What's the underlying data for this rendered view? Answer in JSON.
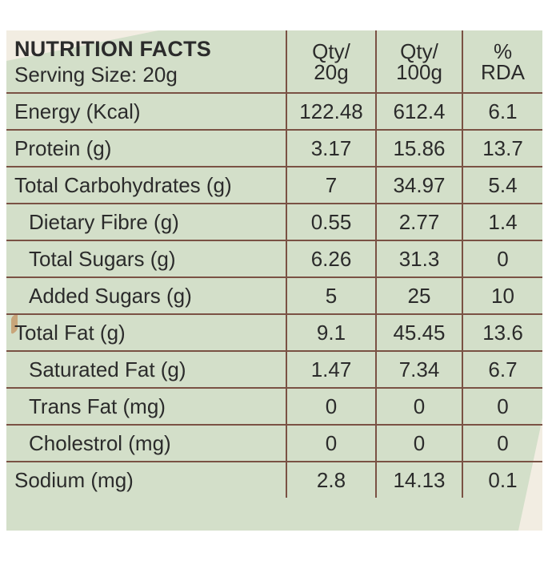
{
  "header": {
    "title": "NUTRITION FACTS",
    "serving": "Serving Size: 20g",
    "columns": [
      {
        "line1": "Qty/",
        "line2": "20g"
      },
      {
        "line1": "Qty/",
        "line2": "100g"
      },
      {
        "line1": "%",
        "line2": "RDA"
      }
    ]
  },
  "rows": [
    {
      "label": "Energy (Kcal)",
      "q20": "122.48",
      "q100": "612.4",
      "rda": "6.1"
    },
    {
      "label": "Protein (g)",
      "q20": "3.17",
      "q100": "15.86",
      "rda": "13.7"
    },
    {
      "label": "Total Carbohydrates (g)",
      "q20": "7",
      "q100": "34.97",
      "rda": "5.4"
    },
    {
      "label": "Dietary Fibre (g)",
      "q20": "0.55",
      "q100": "2.77",
      "rda": "1.4"
    },
    {
      "label": "Total Sugars (g)",
      "q20": "6.26",
      "q100": "31.3",
      "rda": "0"
    },
    {
      "label": "Added Sugars (g)",
      "q20": "5",
      "q100": "25",
      "rda": "10"
    },
    {
      "label": "Total Fat (g)",
      "q20": "9.1",
      "q100": "45.45",
      "rda": "13.6"
    },
    {
      "label": "Saturated Fat (g)",
      "q20": "1.47",
      "q100": "7.34",
      "rda": "6.7"
    },
    {
      "label": "Trans Fat (mg)",
      "q20": "0",
      "q100": "0",
      "rda": "0"
    },
    {
      "label": "Cholestrol (mg)",
      "q20": "0",
      "q100": "0",
      "rda": "0"
    },
    {
      "label": "Sodium (mg)",
      "q20": "2.8",
      "q100": "14.13",
      "rda": "0.1"
    }
  ],
  "colors": {
    "panel": "#d3dfc9",
    "border": "#7a5244",
    "text": "#2b2b2b",
    "accent": "#f2ede2"
  }
}
